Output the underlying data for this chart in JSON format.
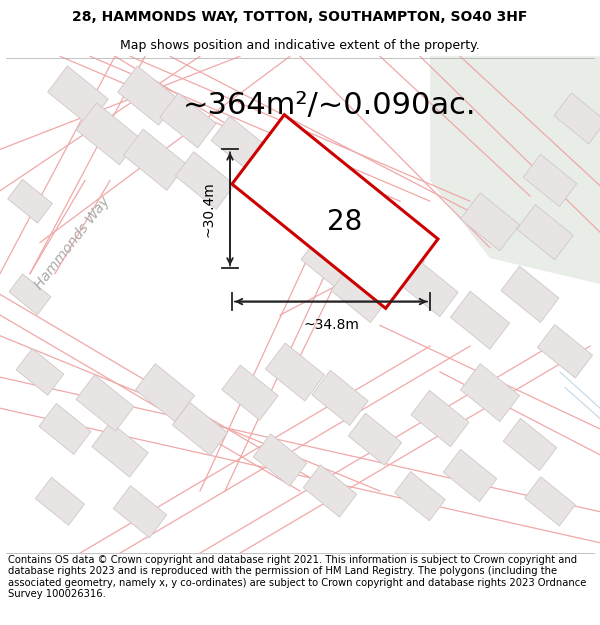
{
  "title_line1": "28, HAMMONDS WAY, TOTTON, SOUTHAMPTON, SO40 3HF",
  "title_line2": "Map shows position and indicative extent of the property.",
  "footer_text": "Contains OS data © Crown copyright and database right 2021. This information is subject to Crown copyright and database rights 2023 and is reproduced with the permission of HM Land Registry. The polygons (including the associated geometry, namely x, y co-ordinates) are subject to Crown copyright and database rights 2023 Ordnance Survey 100026316.",
  "area_label": "~364m²/~0.090ac.",
  "number_label": "28",
  "dim_v_label": "~30.4m",
  "dim_h_label": "~34.8m",
  "street_label": "Hammonds Way",
  "bg_color": "#ffffff",
  "road_line_color": "#f0a8a8",
  "building_fill": "#e8e4e4",
  "building_edge": "#d0c8c8",
  "plot_edge": "#cc0000",
  "plot_fill": "#ffffff",
  "green_fill": "#e8ede8",
  "dim_color": "#222222",
  "street_color": "#aaaaaa",
  "title_fontsize": 10,
  "subtitle_fontsize": 9,
  "footer_fontsize": 7.2,
  "area_fontsize": 22,
  "number_fontsize": 20,
  "dim_fontsize": 10,
  "street_fontsize": 10
}
